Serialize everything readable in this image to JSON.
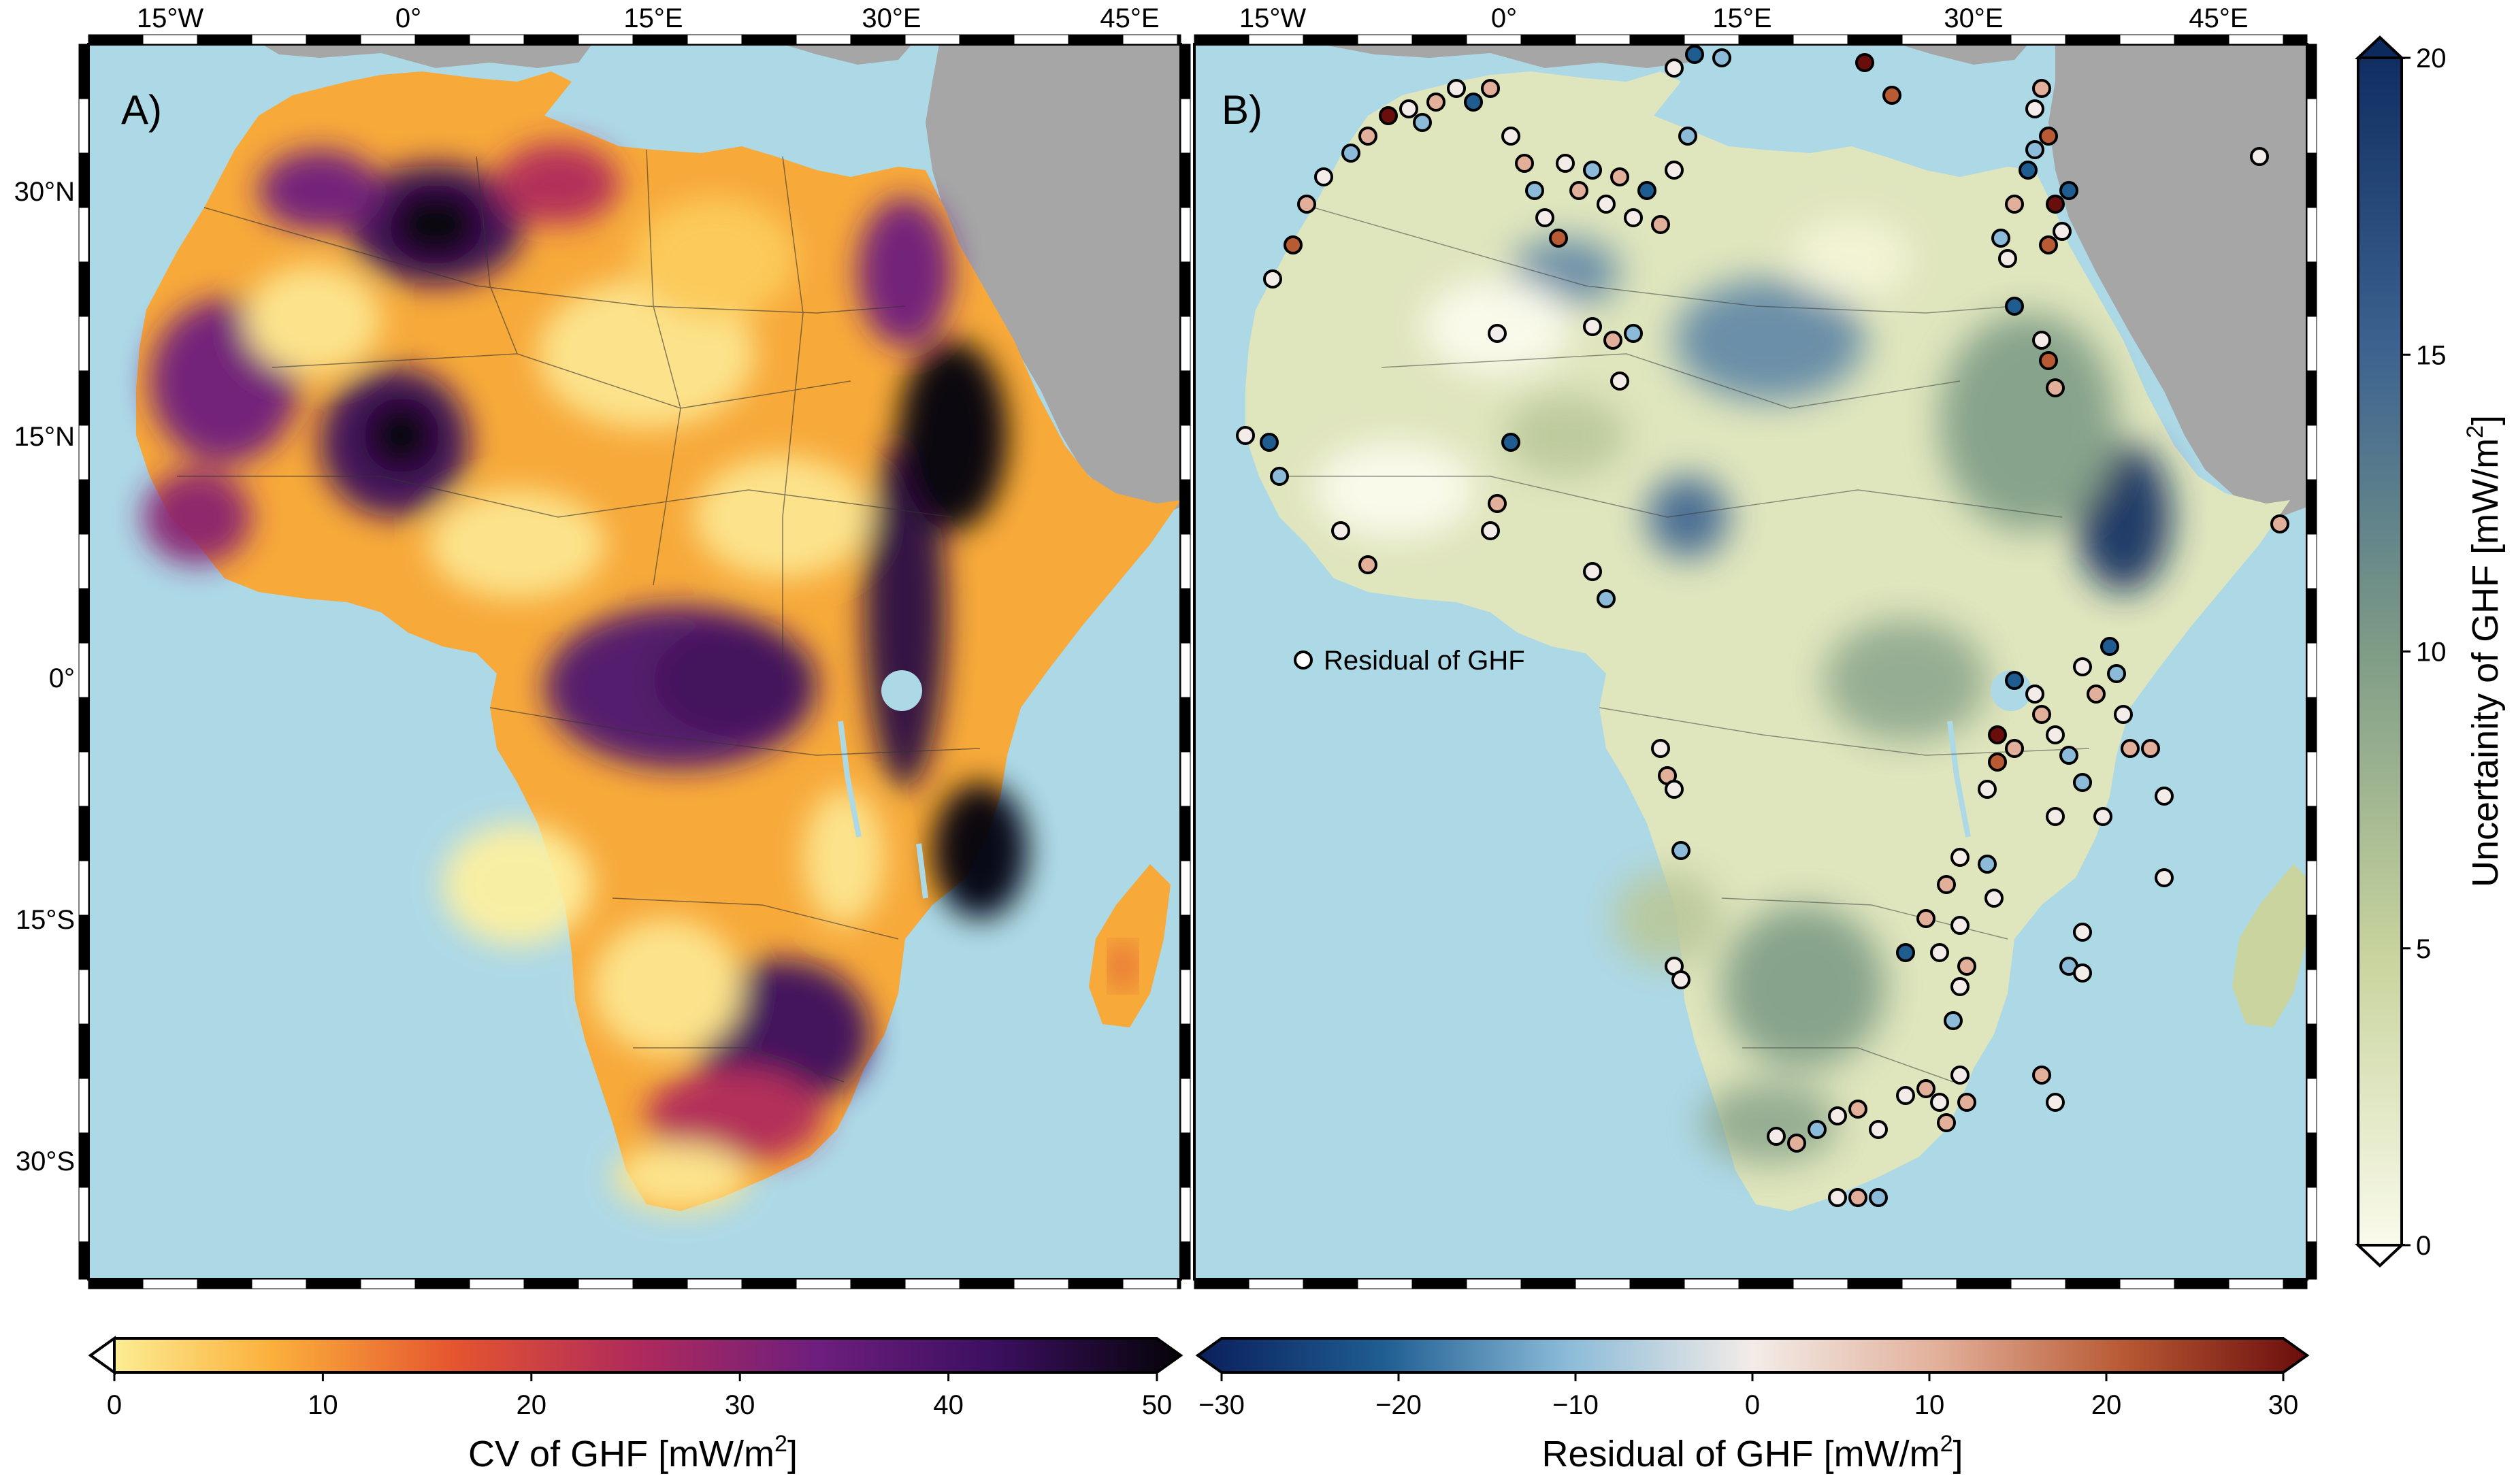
{
  "panels": [
    {
      "label": "A)"
    },
    {
      "label": "B)"
    }
  ],
  "axes": {
    "lon_labels": [
      "15°W",
      "0°",
      "15°E",
      "30°E",
      "45°E"
    ],
    "lat_labels": [
      "30°N",
      "15°N",
      "0°",
      "15°S",
      "30°S"
    ]
  },
  "legend": {
    "label": "Residual of GHF"
  },
  "colorbars": {
    "cv": {
      "title_main": "CV of GHF [mW/m",
      "title_sup": "2",
      "title_end": "]",
      "ticks": [
        "0",
        "10",
        "20",
        "30",
        "40",
        "50"
      ],
      "range": [
        0,
        50
      ],
      "colors": [
        "#fdf6a0",
        "#fbb03b",
        "#e5552f",
        "#b02a5b",
        "#6e1e7e",
        "#3a0f5e",
        "#050308"
      ]
    },
    "residual": {
      "title_main": "Residual of GHF [mW/m",
      "title_sup": "2",
      "title_end": "]",
      "ticks": [
        "−30",
        "−20",
        "−10",
        "0",
        "10",
        "20",
        "30"
      ],
      "range": [
        -30,
        30
      ],
      "colors": [
        "#0a1f5c",
        "#1f5d91",
        "#8bbbd8",
        "#f3ece8",
        "#e2b09a",
        "#b85a34",
        "#6a0d0d"
      ]
    },
    "uncertainty": {
      "title_main": "Uncertainity of GHF [mW/m",
      "title_sup": "2",
      "title_end": "]",
      "ticks": [
        "0",
        "5",
        "10",
        "15",
        "20"
      ],
      "range": [
        0,
        20
      ],
      "colors": [
        "#fdfdf0",
        "#c9d49e",
        "#7e9c86",
        "#3b6290",
        "#0d2a5e"
      ]
    }
  },
  "colors": {
    "ocean": "#add8e6",
    "land_other": "#a6a6a6"
  }
}
